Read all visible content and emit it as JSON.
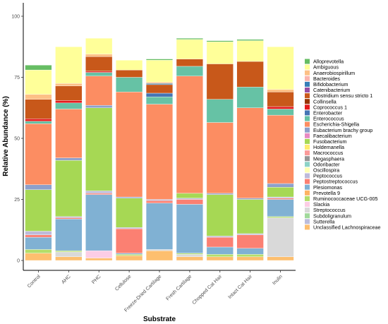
{
  "chart_data": {
    "type": "bar",
    "stacked": true,
    "xlabel": "Substrate",
    "ylabel": "Relative Abundance (%)",
    "ylim": [
      0,
      107
    ],
    "yticks": [
      0,
      25,
      50,
      75,
      100
    ],
    "grid": false,
    "legend_position": "right",
    "categories": [
      "Control",
      "AHC",
      "PHC",
      "Cellulose",
      "Freeze-Dried Cartilage",
      "Fresh Cartilage",
      "Chopped Cat Hair",
      "Intact Cat Hair",
      "Inulin"
    ],
    "series": [
      {
        "name": "Unclassified Lachnospiraceae",
        "color": "#fdbf6f",
        "values": [
          3,
          1.5,
          1,
          2,
          4,
          1.5,
          1.5,
          1.5,
          1.5
        ]
      },
      {
        "name": "Sutterella",
        "color": "#bcbddc",
        "values": [
          0,
          0,
          0,
          0,
          0,
          0,
          0,
          0,
          0
        ]
      },
      {
        "name": "Subdoligranulum",
        "color": "#a1d99b",
        "values": [
          0,
          0,
          0,
          0,
          0,
          0,
          0,
          0,
          0
        ]
      },
      {
        "name": "Streptococcus",
        "color": "#d9d9d9",
        "values": [
          0,
          2,
          0,
          0,
          0.5,
          1,
          0,
          0,
          16
        ]
      },
      {
        "name": "Slackia",
        "color": "#fccde5",
        "values": [
          0,
          0,
          3,
          0,
          0,
          0,
          0,
          0,
          0
        ]
      },
      {
        "name": "Ruminococcaceae UCG-005",
        "color": "#b3de69",
        "values": [
          1.5,
          0.5,
          0,
          0.5,
          0,
          0.5,
          1,
          1,
          0.5
        ]
      },
      {
        "name": "Prevotella 9",
        "color": "#fdb462",
        "values": [
          0,
          0,
          0,
          0,
          0,
          0,
          0,
          0,
          0
        ]
      },
      {
        "name": "Plesiomonas",
        "color": "#80b1d3",
        "values": [
          5,
          13,
          23,
          0.5,
          19,
          20,
          3,
          2.5,
          7
        ]
      },
      {
        "name": "Peptostreptococcus",
        "color": "#fb8072",
        "values": [
          1,
          0.5,
          0.5,
          10,
          1,
          2,
          4,
          5.5,
          0.5
        ]
      },
      {
        "name": "Peptococcus",
        "color": "#bebada",
        "values": [
          1.5,
          0.5,
          1,
          0.5,
          0.5,
          0.5,
          0.5,
          0.5,
          0.5
        ]
      },
      {
        "name": "Oscillospira",
        "color": "#ffffb3",
        "values": [
          0,
          0,
          0,
          0,
          0,
          0,
          0,
          0,
          0
        ]
      },
      {
        "name": "Odoribacter",
        "color": "#8dd3c7",
        "values": [
          0,
          0,
          0,
          0,
          0,
          0,
          0,
          0,
          0
        ]
      },
      {
        "name": "Megasphaera",
        "color": "#969696",
        "values": [
          0,
          0,
          0,
          0,
          0,
          0,
          0,
          0,
          0
        ]
      },
      {
        "name": "Macrococcus",
        "color": "#fb9a99",
        "values": [
          0,
          0,
          0,
          0,
          0,
          0,
          0,
          0,
          0
        ]
      },
      {
        "name": "Holdemanella",
        "color": "#ffed6f",
        "values": [
          0,
          0,
          0,
          0,
          0,
          0,
          0,
          0,
          0
        ]
      },
      {
        "name": "Fusobacterium",
        "color": "#a6d854",
        "values": [
          17,
          23,
          34,
          12,
          0,
          2,
          17,
          14,
          4
        ]
      },
      {
        "name": "Faecalibacterium",
        "color": "#e78ac3",
        "values": [
          0,
          0,
          0,
          0,
          0,
          0,
          0,
          0,
          0
        ]
      },
      {
        "name": "Eubacterium brachy group",
        "color": "#8da0cb",
        "values": [
          2,
          1,
          1,
          0.5,
          0,
          0,
          0.5,
          0.5,
          1.5
        ]
      },
      {
        "name": "Escherichia-Shigella",
        "color": "#fc8d62",
        "values": [
          25,
          20,
          12,
          43,
          39,
          48,
          29,
          37,
          28
        ]
      },
      {
        "name": "Enterococcus",
        "color": "#66c2a5",
        "values": [
          1,
          2.5,
          1.5,
          6,
          3,
          4,
          9.5,
          8.5,
          2.5
        ]
      },
      {
        "name": "Enterobacter",
        "color": "#4575b4",
        "values": [
          0,
          0,
          0,
          0,
          1.5,
          0,
          0,
          0,
          0
        ]
      },
      {
        "name": "Coprococcus 1",
        "color": "#e41a1c",
        "values": [
          1,
          1,
          0.5,
          0,
          0,
          0,
          0,
          0,
          1
        ]
      },
      {
        "name": "Collinsella",
        "color": "#993404",
        "values": [
          0,
          0,
          0,
          0,
          0,
          0,
          0,
          0,
          0
        ]
      },
      {
        "name": "Clostridium sensu stricto 1",
        "color": "#c8581a",
        "values": [
          8,
          6,
          6,
          3,
          3.5,
          3,
          14.5,
          10.5,
          6
        ]
      },
      {
        "name": "Catenibacterium",
        "color": "#984ea3",
        "values": [
          0,
          0,
          0,
          0,
          0,
          0,
          0,
          0,
          0
        ]
      },
      {
        "name": "Bifidobacterium",
        "color": "#377eb8",
        "values": [
          0,
          0,
          0,
          0,
          0.5,
          0,
          0,
          0,
          0
        ]
      },
      {
        "name": "Bacteroides",
        "color": "#fbb4ae",
        "values": [
          0,
          0,
          0,
          0,
          0,
          0,
          0,
          0,
          0
        ]
      },
      {
        "name": "Anaerobiospirillum",
        "color": "#fdc086",
        "values": [
          2,
          1,
          1,
          0,
          0.5,
          0,
          0,
          0,
          1
        ]
      },
      {
        "name": "Ambiguous",
        "color": "#ffff99",
        "values": [
          10,
          15,
          6.5,
          4,
          9,
          8,
          9,
          8.5,
          17.5
        ]
      },
      {
        "name": "Alloprevotella",
        "color": "#66bd63",
        "values": [
          2,
          0,
          0,
          0,
          0.5,
          0.5,
          0.5,
          0.5,
          0
        ]
      }
    ],
    "legend_order": [
      "Alloprevotella",
      "Ambiguous",
      "Anaerobiospirillum",
      "Bacteroides",
      "Bifidobacterium",
      "Catenibacterium",
      "Clostridium sensu stricto 1",
      "Collinsella",
      "Coprococcus 1",
      "Enterobacter",
      "Enterococcus",
      "Escherichia-Shigella",
      "Eubacterium brachy group",
      "Faecalibacterium",
      "Fusobacterium",
      "Holdemanella",
      "Macrococcus",
      "Megasphaera",
      "Odoribacter",
      "Oscillospira",
      "Peptococcus",
      "Peptostreptococcus",
      "Plesiomonas",
      "Prevotella 9",
      "Ruminococcaceae UCG-005",
      "Slackia",
      "Streptococcus",
      "Subdoligranulum",
      "Sutterella",
      "Unclassified Lachnospiraceae"
    ]
  }
}
